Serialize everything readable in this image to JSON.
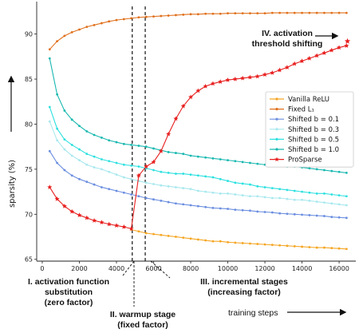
{
  "chart_data": {
    "type": "line",
    "ylabel": "sparsity (%)",
    "xlabel": "training steps",
    "xlim": [
      -300,
      16900
    ],
    "ylim": [
      64.8,
      93.6
    ],
    "xticks": [
      0,
      2000,
      4000,
      6000,
      8000,
      10000,
      12000,
      14000,
      16000
    ],
    "yticks": [
      65,
      70,
      75,
      80,
      85,
      90
    ],
    "grid": false,
    "legend_position": "right",
    "series": [
      {
        "name": "Vanilla ReLU",
        "color": "#f5a623",
        "marker": "dot",
        "x": [
          4800,
          5200,
          5600,
          6000,
          6400,
          6800,
          7200,
          7600,
          8000,
          8400,
          8800,
          9200,
          9600,
          10000,
          10400,
          10800,
          11200,
          11600,
          12000,
          12400,
          12800,
          13200,
          13600,
          14000,
          14400,
          14800,
          15200,
          15600,
          16000,
          16400
        ],
        "y": [
          68.3,
          68.1,
          67.9,
          67.8,
          67.7,
          67.6,
          67.5,
          67.4,
          67.3,
          67.2,
          67.1,
          67.0,
          67.0,
          66.9,
          66.85,
          66.8,
          66.75,
          66.7,
          66.65,
          66.6,
          66.55,
          66.5,
          66.45,
          66.4,
          66.35,
          66.3,
          66.3,
          66.25,
          66.2,
          66.15
        ]
      },
      {
        "name": "Fixed L₁",
        "color": "#e0701c",
        "marker": "dot",
        "x": [
          400,
          800,
          1200,
          1600,
          2000,
          2400,
          2800,
          3200,
          3600,
          4000,
          4400,
          4800,
          5200,
          5600,
          6000,
          6400,
          6800,
          7200,
          7600,
          8000,
          8400,
          8800,
          9200,
          9600,
          10000,
          10400,
          10800,
          11200,
          11600,
          12000,
          12400,
          12800,
          13200,
          13600,
          14000,
          14400,
          14800,
          15200,
          15600,
          16000,
          16400
        ],
        "y": [
          88.3,
          89.2,
          89.8,
          90.2,
          90.5,
          90.8,
          91.0,
          91.2,
          91.4,
          91.55,
          91.65,
          91.75,
          91.85,
          91.9,
          91.95,
          92.0,
          92.05,
          92.1,
          92.15,
          92.2,
          92.2,
          92.25,
          92.25,
          92.25,
          92.3,
          92.3,
          92.3,
          92.3,
          92.3,
          92.3,
          92.35,
          92.35,
          92.35,
          92.35,
          92.35,
          92.35,
          92.35,
          92.35,
          92.35,
          92.35,
          92.35
        ]
      },
      {
        "name": "Shifted b = 0.1",
        "color": "#6b8ee0",
        "marker": "dot",
        "x": [
          400,
          800,
          1200,
          1600,
          2000,
          2400,
          2800,
          3200,
          3600,
          4000,
          4400,
          4800,
          5200,
          5600,
          6000,
          6400,
          6800,
          7200,
          7600,
          8000,
          8400,
          8800,
          9200,
          9600,
          10000,
          10400,
          10800,
          11200,
          11600,
          12000,
          12400,
          12800,
          13200,
          13600,
          14000,
          14400,
          14800,
          15200,
          15600,
          16000,
          16400
        ],
        "y": [
          77.0,
          75.7,
          74.9,
          74.3,
          73.9,
          73.6,
          73.3,
          73.0,
          72.8,
          72.6,
          72.4,
          72.2,
          72.0,
          71.8,
          71.65,
          71.5,
          71.35,
          71.2,
          71.1,
          71.0,
          70.9,
          70.8,
          70.7,
          70.65,
          70.6,
          70.5,
          70.45,
          70.4,
          70.3,
          70.25,
          70.2,
          70.1,
          70.05,
          70.0,
          69.95,
          69.9,
          69.85,
          69.8,
          69.7,
          69.65,
          69.6
        ]
      },
      {
        "name": "Shifted b = 0.3",
        "color": "#a8e8ee",
        "marker": "dot",
        "x": [
          400,
          800,
          1200,
          1600,
          2000,
          2400,
          2800,
          3200,
          3600,
          4000,
          4400,
          4800,
          5200,
          5600,
          6000,
          6400,
          6800,
          7200,
          7600,
          8000,
          8400,
          8800,
          9200,
          9600,
          10000,
          10400,
          10800,
          11200,
          11600,
          12000,
          12400,
          12800,
          13200,
          13600,
          14000,
          14400,
          14800,
          15200,
          15600,
          16000,
          16400
        ],
        "y": [
          80.3,
          78.2,
          77.2,
          76.5,
          76.0,
          75.5,
          75.2,
          75.0,
          74.7,
          74.4,
          74.1,
          73.9,
          73.7,
          73.5,
          73.35,
          73.2,
          73.1,
          73.0,
          72.9,
          72.8,
          72.6,
          72.5,
          72.4,
          72.3,
          72.3,
          72.2,
          72.1,
          72.0,
          72.0,
          71.9,
          71.8,
          71.8,
          71.7,
          71.6,
          71.6,
          71.5,
          71.4,
          71.3,
          71.2,
          71.1,
          71.0
        ]
      },
      {
        "name": "Shifted b = 0.5",
        "color": "#2ee0e0",
        "marker": "dot",
        "x": [
          400,
          800,
          1200,
          1600,
          2000,
          2400,
          2800,
          3200,
          3600,
          4000,
          4400,
          4800,
          5200,
          5600,
          6000,
          6400,
          6800,
          7200,
          7600,
          8000,
          8400,
          8800,
          9200,
          9600,
          10000,
          10400,
          10800,
          11200,
          11600,
          12000,
          12400,
          12800,
          13200,
          13600,
          14000,
          14400,
          14800,
          15200,
          15600,
          16000,
          16400
        ],
        "y": [
          81.9,
          79.5,
          78.3,
          77.7,
          77.2,
          76.7,
          76.4,
          76.1,
          75.9,
          75.7,
          75.5,
          75.4,
          75.3,
          75.1,
          74.9,
          74.7,
          74.6,
          74.5,
          74.5,
          74.4,
          74.3,
          74.2,
          74.1,
          73.9,
          73.7,
          73.5,
          73.4,
          73.3,
          73.1,
          73.0,
          72.9,
          72.8,
          72.7,
          72.6,
          72.5,
          72.4,
          72.3,
          72.3,
          72.2,
          72.1,
          72.0
        ]
      },
      {
        "name": "Shifted b = 1.0",
        "color": "#18b8b0",
        "marker": "dot",
        "x": [
          400,
          800,
          1200,
          1600,
          2000,
          2400,
          2800,
          3200,
          3600,
          4000,
          4400,
          4800,
          5200,
          5600,
          6000,
          6400,
          6800,
          7200,
          7600,
          8000,
          8400,
          8800,
          9200,
          9600,
          10000,
          10400,
          10800,
          11200,
          11600,
          12000,
          12400,
          12800,
          13200,
          13600,
          14000,
          14400,
          14800,
          15200,
          15600,
          16000,
          16400
        ],
        "y": [
          87.3,
          83.3,
          81.5,
          80.5,
          79.8,
          79.2,
          78.8,
          78.5,
          78.2,
          78.0,
          77.8,
          77.7,
          77.6,
          77.5,
          77.3,
          77.1,
          76.9,
          76.8,
          76.7,
          76.5,
          76.4,
          76.3,
          76.2,
          76.1,
          76.0,
          75.9,
          75.8,
          75.7,
          75.6,
          75.5,
          75.5,
          75.4,
          75.3,
          75.3,
          75.2,
          75.1,
          75.0,
          74.9,
          74.8,
          74.7,
          74.6
        ]
      },
      {
        "name": "ProSparse",
        "color": "#e82020",
        "marker": "star",
        "x": [
          400,
          800,
          1200,
          1600,
          2000,
          2400,
          2800,
          3200,
          3600,
          4000,
          4400,
          4800,
          5200,
          5600,
          6000,
          6400,
          6800,
          7200,
          7600,
          8000,
          8400,
          8800,
          9200,
          9600,
          10000,
          10400,
          10800,
          11200,
          11600,
          12000,
          12400,
          12800,
          13200,
          13600,
          14000,
          14400,
          14800,
          15200,
          15600,
          16000,
          16400
        ],
        "y": [
          73.0,
          71.7,
          70.9,
          70.3,
          69.9,
          69.6,
          69.3,
          69.1,
          68.9,
          68.75,
          68.6,
          68.4,
          74.3,
          75.3,
          75.8,
          77.0,
          78.9,
          80.6,
          82.0,
          83.0,
          83.7,
          84.2,
          84.5,
          84.7,
          84.9,
          85.0,
          85.1,
          85.2,
          85.3,
          85.5,
          85.7,
          86.0,
          86.3,
          86.7,
          87.0,
          87.3,
          87.6,
          87.9,
          88.2,
          88.5,
          88.7
        ]
      }
    ],
    "extra_points": [
      {
        "series": "ProSparse",
        "x": 16450,
        "y": 89.2
      }
    ],
    "vlines": [
      4850,
      5550
    ],
    "annotations": {
      "stage1": [
        "I. activation function",
        "substitution",
        "(zero factor)"
      ],
      "stage2": [
        "II. warmup stage",
        "(fixed factor)"
      ],
      "stage3": [
        "III. incremental stages",
        "(increasing factor)"
      ],
      "stage4": [
        "IV. activation",
        "threshold shifting"
      ]
    }
  }
}
